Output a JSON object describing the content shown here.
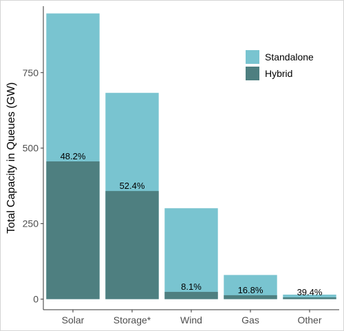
{
  "chart_data": {
    "type": "bar",
    "stacked": "overlay",
    "categories": [
      "Solar",
      "Storage*",
      "Wind",
      "Gas",
      "Other"
    ],
    "series": [
      {
        "name": "Standalone",
        "values": [
          946,
          683,
          301,
          80,
          15
        ]
      },
      {
        "name": "Hybrid",
        "values": [
          456,
          358,
          24,
          13,
          6
        ]
      }
    ],
    "data_labels": [
      "48.2%",
      "52.4%",
      "8.1%",
      "16.8%",
      "39.4%"
    ],
    "xlabel": "",
    "ylabel": "Total Capacity in Queues (GW)",
    "ylim": [
      -35,
      970
    ],
    "yticks": [
      0,
      250,
      500,
      750
    ],
    "grid": false,
    "legend": "top-right",
    "colors": {
      "Standalone": "#79c4d0",
      "Hybrid": "#4e7f80",
      "axis": "#333333"
    }
  }
}
